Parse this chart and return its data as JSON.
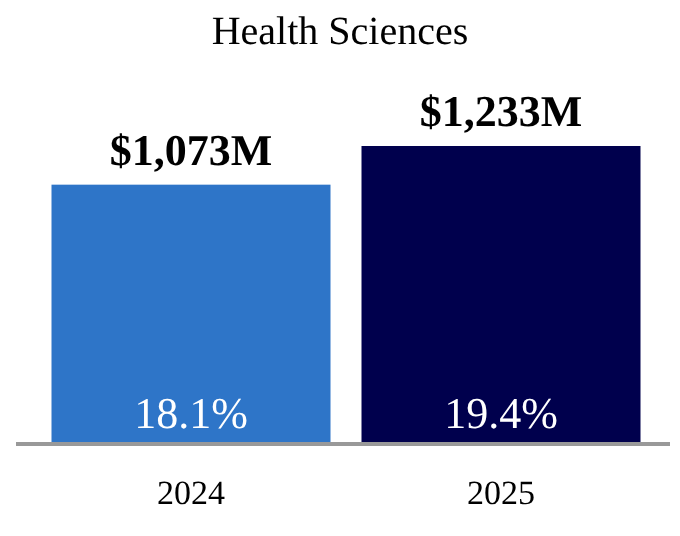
{
  "chart_data": {
    "type": "bar",
    "title": "Health Sciences",
    "categories": [
      "2024",
      "2025"
    ],
    "values": [
      1073,
      1233
    ],
    "colors": [
      "#2e75c8",
      "#00004d"
    ],
    "value_labels": [
      "$1,073M",
      "$1,233M"
    ],
    "annotations": [
      "18.1%",
      "19.4%"
    ]
  }
}
